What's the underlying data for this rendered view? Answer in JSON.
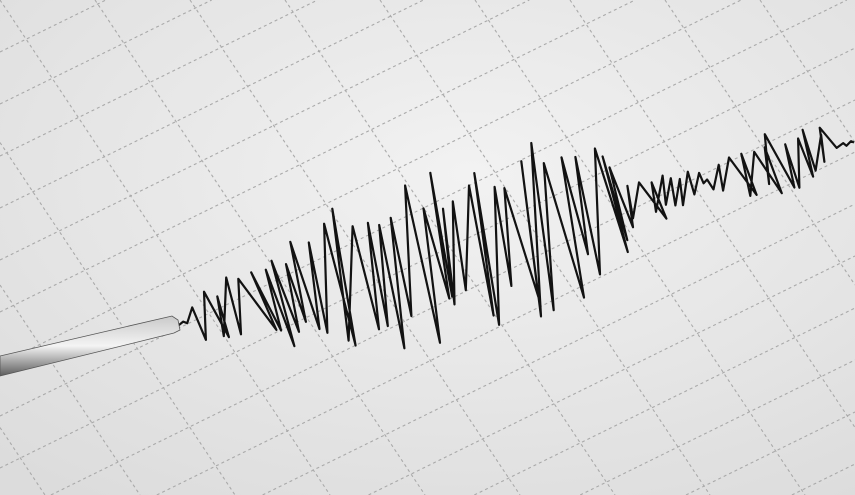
{
  "colors": {
    "paper": "#f2f2f2",
    "paper_shade": "#dcdcdc",
    "grid": "#a9a9a9",
    "trace": "#121212",
    "stylus_light": "#c9c9c9",
    "stylus_dark": "#5c5c5c"
  }
}
